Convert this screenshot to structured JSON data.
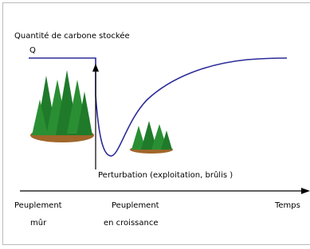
{
  "title": "Quantité de carbone stockée",
  "axis_label": "Q",
  "disturbance": "Perturbation (exploitation, brûlis )",
  "time_label": "Temps",
  "stages": [
    {
      "line1": "Peuplement",
      "line2": "mûr"
    },
    {
      "line1": "Peuplement",
      "line2": "en croissance"
    }
  ]
}
